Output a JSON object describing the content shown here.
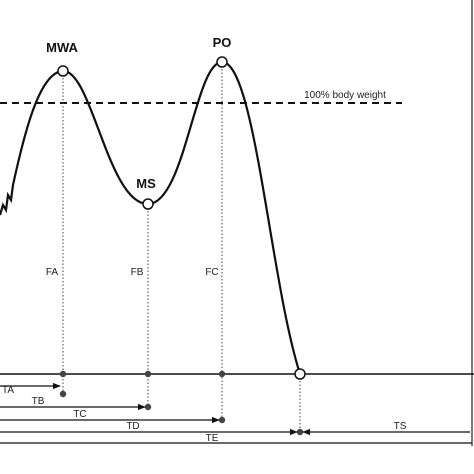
{
  "points": {
    "mwa": "MWA",
    "ms": "MS",
    "po": "PO"
  },
  "reference_line": "100% body weight",
  "forces": {
    "fa": "FA",
    "fb": "FB",
    "fc": "FC"
  },
  "times": {
    "ta": "TA",
    "tb": "TB",
    "tc": "TC",
    "td": "TD",
    "te": "TE",
    "ts": "TS"
  }
}
